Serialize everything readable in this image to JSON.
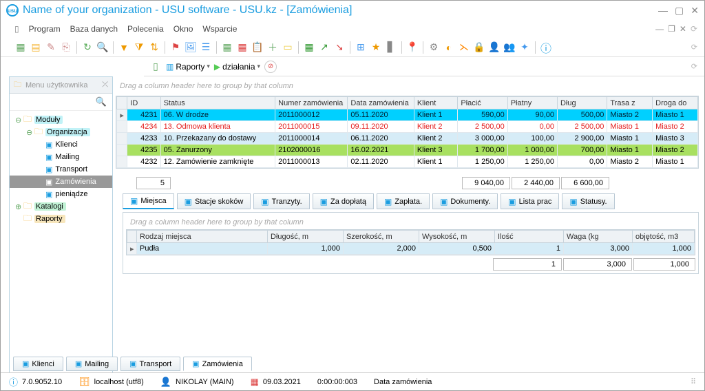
{
  "window": {
    "title": "Name of your organization - USU software - USU.kz - [Zamówienia]"
  },
  "menu": {
    "items": [
      "Program",
      "Baza danych",
      "Polecenia",
      "Okno",
      "Wsparcie"
    ]
  },
  "subtoolbar": {
    "reports": "Raporty",
    "actions": "działania"
  },
  "sidebar": {
    "title": "Menu użytkownika",
    "nodes": [
      {
        "label": "Moduły",
        "depth": 0,
        "exp": "⊖",
        "cls": "lbl-hl1"
      },
      {
        "label": "Organizacja",
        "depth": 1,
        "exp": "⊖",
        "cls": "lbl-hl1"
      },
      {
        "label": "Klienci",
        "depth": 2,
        "leaf": true
      },
      {
        "label": "Mailing",
        "depth": 2,
        "leaf": true
      },
      {
        "label": "Transport",
        "depth": 2,
        "leaf": true
      },
      {
        "label": "Zamówienia",
        "depth": 2,
        "leaf": true,
        "sel": true
      },
      {
        "label": "pieniądze",
        "depth": 2,
        "leaf": true
      },
      {
        "label": "Katalogi",
        "depth": 0,
        "exp": "⊕",
        "cls": "lbl-hl2"
      },
      {
        "label": "Raporty",
        "depth": 0,
        "exp": "",
        "cls": "lbl-hl3"
      }
    ]
  },
  "grid": {
    "groupHint": "Drag a column header here to group by that column",
    "headers": [
      "ID",
      "Status",
      "Numer zamówienia",
      "Data zamówienia",
      "Klient",
      "Płacić",
      "Płatny",
      "Dług",
      "Trasa z",
      "Droga do"
    ],
    "colWidths": [
      "44px",
      "152px",
      "96px",
      "88px",
      "58px",
      "66px",
      "66px",
      "66px",
      "60px",
      "60px"
    ],
    "rowHdrWidth": "14px",
    "rows": [
      {
        "marker": "▸",
        "cls": "r0",
        "cells": [
          "4231",
          "06. W drodze",
          "2011000012",
          "05.11.2020",
          "Klient 1",
          "590,00",
          "90,00",
          "500,00",
          "Miasto 2",
          "Miasto 1"
        ]
      },
      {
        "marker": "",
        "cls": "r1",
        "cells": [
          "4234",
          "13. Odmowa klienta",
          "2011000015",
          "09.11.2020",
          "Klient 2",
          "2 500,00",
          "0,00",
          "2 500,00",
          "Miasto 1",
          "Miasto 2"
        ]
      },
      {
        "marker": "",
        "cls": "r2",
        "cells": [
          "4233",
          "10. Przekazany do dostawy",
          "2011000014",
          "06.11.2020",
          "Klient 2",
          "3 000,00",
          "100,00",
          "2 900,00",
          "Miasto 1",
          "Miasto 3"
        ]
      },
      {
        "marker": "",
        "cls": "r3",
        "cells": [
          "4235",
          "05. Zanurzony",
          "2102000016",
          "16.02.2021",
          "Klient 3",
          "1 700,00",
          "1 000,00",
          "700,00",
          "Miasto 1",
          "Miasto 2"
        ]
      },
      {
        "marker": "",
        "cls": "",
        "cells": [
          "4232",
          "12. Zamówienie zamknięte",
          "2011000013",
          "02.11.2020",
          "Klient 1",
          "1 250,00",
          "1 250,00",
          "0,00",
          "Miasto 2",
          "Miasto 1"
        ]
      }
    ],
    "summary": {
      "count": "5",
      "totals": [
        "9 040,00",
        "2 440,00",
        "6 600,00"
      ]
    }
  },
  "detailTabs": {
    "tabs": [
      "Miejsca",
      "Stacje skoków",
      "Tranzyty.",
      "Za dopłatą",
      "Zapłata.",
      "Dokumenty.",
      "Lista prac",
      "Statusy."
    ],
    "active": 0
  },
  "subgrid": {
    "groupHint": "Drag a column header here to group by that column",
    "headers": [
      "Rodzaj miejsca",
      "Długość, m",
      "Szerokość, m",
      "Wysokość, m",
      "Ilość",
      "Waga (kg",
      "objętość, m3"
    ],
    "colWidths": [
      "190px",
      "110px",
      "110px",
      "110px",
      "100px",
      "100px",
      "90px"
    ],
    "rows": [
      {
        "marker": "▸",
        "cells": [
          "Pudła",
          "1,000",
          "2,000",
          "0,500",
          "1",
          "3,000",
          "1,000"
        ]
      }
    ],
    "summary": [
      "1",
      "3,000",
      "1,000"
    ]
  },
  "windowTabs": {
    "tabs": [
      "Klienci",
      "Mailing",
      "Transport",
      "Zamówienia"
    ],
    "active": 3
  },
  "status": {
    "version": "7.0.9052.10",
    "host": "localhost (utf8)",
    "user": "NIKOLAY (MAIN)",
    "date": "09.03.2021",
    "time": "0:00:00:003",
    "info": "Data zamówienia"
  },
  "colors": {
    "accent": "#1a9de0",
    "rowCyan": "#00d0ff",
    "rowRedText": "#e31b1b",
    "rowBlue": "#d6ecf7",
    "rowGreen": "#a8e060"
  }
}
